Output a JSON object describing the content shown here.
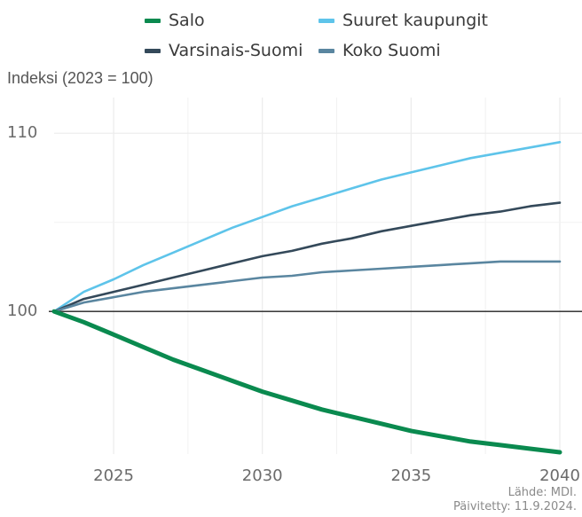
{
  "chart_data": {
    "type": "line",
    "ylabel": "Indeksi (2023 = 100)",
    "xlim": [
      2023,
      2040
    ],
    "ylim": [
      92,
      112
    ],
    "x_ticks": [
      "2025",
      "2030",
      "2035",
      "2040"
    ],
    "y_ticks": [
      "100",
      "110"
    ],
    "reference_line": 100,
    "grid": true,
    "legend_position": "top",
    "x": [
      2023,
      2024,
      2025,
      2026,
      2027,
      2028,
      2029,
      2030,
      2031,
      2032,
      2033,
      2034,
      2035,
      2036,
      2037,
      2038,
      2039,
      2040
    ],
    "series": [
      {
        "name": "Salo",
        "color": "#0a8a4f",
        "values": [
          100,
          99.4,
          98.7,
          98.0,
          97.3,
          96.7,
          96.1,
          95.5,
          95.0,
          94.5,
          94.1,
          93.7,
          93.3,
          93.0,
          92.7,
          92.5,
          92.3,
          92.1
        ]
      },
      {
        "name": "Suuret kaupungit",
        "color": "#5ec4ea",
        "values": [
          100,
          101.1,
          101.8,
          102.6,
          103.3,
          104.0,
          104.7,
          105.3,
          105.9,
          106.4,
          106.9,
          107.4,
          107.8,
          108.2,
          108.6,
          108.9,
          109.2,
          109.5
        ]
      },
      {
        "name": "Varsinais-Suomi",
        "color": "#34495a",
        "values": [
          100,
          100.7,
          101.1,
          101.5,
          101.9,
          102.3,
          102.7,
          103.1,
          103.4,
          103.8,
          104.1,
          104.5,
          104.8,
          105.1,
          105.4,
          105.6,
          105.9,
          106.1
        ]
      },
      {
        "name": "Koko Suomi",
        "color": "#5a86a0",
        "values": [
          100,
          100.5,
          100.8,
          101.1,
          101.3,
          101.5,
          101.7,
          101.9,
          102.0,
          102.2,
          102.3,
          102.4,
          102.5,
          102.6,
          102.7,
          102.8,
          102.8,
          102.8
        ]
      }
    ]
  },
  "source": {
    "line1": "Lähde: MDI.",
    "line2": "Päivitetty: 11.9.2024."
  }
}
